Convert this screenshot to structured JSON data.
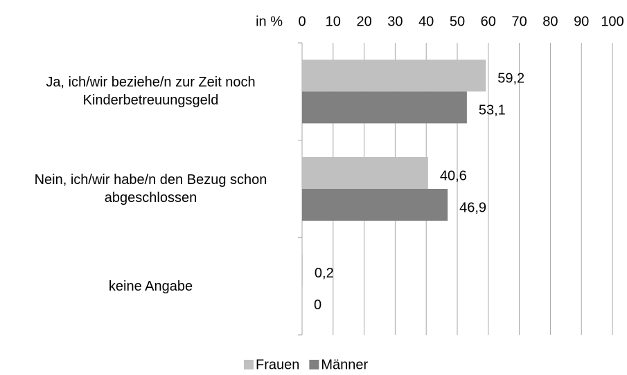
{
  "chart_data": {
    "type": "hbar",
    "xlabel": "in %",
    "categories": [
      "Ja, ich/wir beziehe/n zur Zeit noch Kinderbetreuungsgeld",
      "Nein, ich/wir habe/n den Bezug schon abgeschlossen",
      "keine Angabe"
    ],
    "series": [
      {
        "name": "Frauen",
        "color": "#c0c0c0",
        "values": [
          59.2,
          40.6,
          0.2
        ],
        "value_labels": [
          "59,2",
          "40,6",
          "0,2"
        ]
      },
      {
        "name": "Männer",
        "color": "#808080",
        "values": [
          53.1,
          46.9,
          0
        ],
        "value_labels": [
          "53,1",
          "46,9",
          "0"
        ]
      }
    ],
    "xlim": [
      0,
      100
    ],
    "xticks": [
      0,
      10,
      20,
      30,
      40,
      50,
      60,
      70,
      80,
      90,
      100
    ],
    "grid": true
  }
}
